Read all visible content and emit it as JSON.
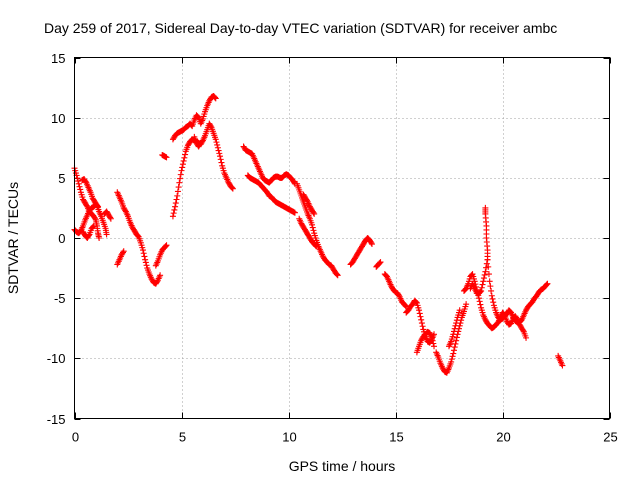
{
  "chart_data": {
    "type": "scatter",
    "title": "Day 259 of 2017, Sidereal Day-to-day VTEC variation (SDTVAR) for receiver ambc",
    "xlabel": "GPS time / hours",
    "ylabel": "SDTVAR / TECUs",
    "xlim": [
      0,
      25
    ],
    "ylim": [
      -15,
      15
    ],
    "xticks": [
      0,
      5,
      10,
      15,
      20,
      25
    ],
    "yticks": [
      -15,
      -10,
      -5,
      0,
      5,
      10,
      15
    ],
    "xtick_labels": [
      "0",
      "5",
      "10",
      "15",
      "20",
      "25"
    ],
    "ytick_labels": [
      "-15",
      "-10",
      "-5",
      "0",
      "5",
      "10",
      "15"
    ],
    "grid": true,
    "marker": "plus",
    "point_color": "#ff0000",
    "segments": [
      [
        [
          0.0,
          5.8
        ],
        [
          0.1,
          5.2
        ],
        [
          0.2,
          4.5
        ],
        [
          0.3,
          3.8
        ],
        [
          0.4,
          3.2
        ],
        [
          0.5,
          2.9
        ],
        [
          0.6,
          2.6
        ],
        [
          0.7,
          2.2
        ],
        [
          0.8,
          2.0
        ],
        [
          0.9,
          1.8
        ],
        [
          1.0,
          1.5
        ],
        [
          1.05,
          1.0
        ],
        [
          1.1,
          0.4
        ],
        [
          1.15,
          0.0
        ]
      ],
      [
        [
          0.0,
          0.7
        ],
        [
          0.1,
          0.5
        ],
        [
          0.2,
          0.4
        ],
        [
          0.3,
          0.6
        ],
        [
          0.4,
          1.0
        ],
        [
          0.5,
          1.5
        ],
        [
          0.6,
          1.9
        ],
        [
          0.7,
          2.3
        ],
        [
          0.8,
          2.5
        ],
        [
          0.9,
          2.6
        ],
        [
          1.0,
          2.8
        ],
        [
          1.1,
          2.6
        ]
      ],
      [
        [
          0.4,
          0.5
        ],
        [
          0.5,
          0.2
        ],
        [
          0.6,
          0.0
        ],
        [
          0.7,
          0.3
        ],
        [
          0.8,
          0.8
        ],
        [
          0.9,
          1.0
        ]
      ],
      [
        [
          0.35,
          4.8
        ],
        [
          0.45,
          4.9
        ],
        [
          0.55,
          4.6
        ],
        [
          0.65,
          4.2
        ],
        [
          0.75,
          3.8
        ],
        [
          0.85,
          3.3
        ],
        [
          0.95,
          3.0
        ],
        [
          1.05,
          2.7
        ],
        [
          1.15,
          2.2
        ],
        [
          1.25,
          1.8
        ],
        [
          1.35,
          1.3
        ],
        [
          1.45,
          0.8
        ],
        [
          1.5,
          0.3
        ]
      ],
      [
        [
          1.4,
          2.0
        ],
        [
          1.5,
          2.2
        ],
        [
          1.6,
          1.9
        ],
        [
          1.7,
          1.6
        ]
      ],
      [
        [
          2.0,
          3.8
        ],
        [
          2.1,
          3.4
        ],
        [
          2.2,
          3.0
        ],
        [
          2.3,
          2.5
        ],
        [
          2.4,
          2.2
        ],
        [
          2.5,
          1.8
        ],
        [
          2.6,
          1.3
        ],
        [
          2.7,
          0.9
        ],
        [
          2.8,
          0.6
        ],
        [
          2.9,
          0.3
        ],
        [
          3.0,
          0.1
        ],
        [
          3.1,
          -0.4
        ],
        [
          3.2,
          -1.0
        ],
        [
          3.3,
          -1.8
        ],
        [
          3.4,
          -2.5
        ],
        [
          3.5,
          -3.0
        ],
        [
          3.6,
          -3.4
        ],
        [
          3.7,
          -3.7
        ],
        [
          3.8,
          -3.8
        ],
        [
          3.9,
          -3.5
        ],
        [
          4.0,
          -3.1
        ]
      ],
      [
        [
          2.0,
          -2.2
        ],
        [
          2.1,
          -1.8
        ],
        [
          2.2,
          -1.4
        ],
        [
          2.3,
          -1.1
        ]
      ],
      [
        [
          3.8,
          -2.3
        ],
        [
          3.9,
          -1.9
        ],
        [
          4.0,
          -1.4
        ],
        [
          4.1,
          -1.0
        ],
        [
          4.2,
          -0.8
        ],
        [
          4.3,
          -0.6
        ]
      ],
      [
        [
          4.1,
          6.9
        ],
        [
          4.2,
          6.8
        ],
        [
          4.3,
          6.7
        ]
      ],
      [
        [
          4.6,
          1.8
        ],
        [
          4.7,
          2.6
        ],
        [
          4.8,
          3.5
        ],
        [
          4.9,
          4.6
        ],
        [
          5.0,
          5.6
        ],
        [
          5.1,
          6.4
        ],
        [
          5.2,
          7.2
        ],
        [
          5.3,
          7.7
        ],
        [
          5.4,
          8.0
        ],
        [
          5.5,
          8.2
        ],
        [
          5.6,
          8.1
        ],
        [
          5.7,
          8.0
        ],
        [
          5.8,
          7.9
        ],
        [
          5.9,
          7.8
        ],
        [
          6.0,
          8.1
        ],
        [
          6.1,
          8.5
        ],
        [
          6.2,
          9.0
        ],
        [
          6.3,
          9.5
        ],
        [
          6.4,
          9.2
        ],
        [
          6.5,
          8.7
        ],
        [
          6.6,
          8.2
        ],
        [
          6.7,
          7.5
        ],
        [
          6.8,
          6.8
        ],
        [
          6.9,
          6.0
        ],
        [
          7.0,
          5.4
        ],
        [
          7.1,
          5.0
        ],
        [
          7.2,
          4.6
        ],
        [
          7.3,
          4.3
        ],
        [
          7.4,
          4.1
        ]
      ],
      [
        [
          4.6,
          8.2
        ],
        [
          4.7,
          8.5
        ],
        [
          4.8,
          8.7
        ],
        [
          4.9,
          8.8
        ],
        [
          5.0,
          8.9
        ],
        [
          5.1,
          9.0
        ],
        [
          5.2,
          9.2
        ],
        [
          5.3,
          9.3
        ],
        [
          5.4,
          9.5
        ],
        [
          5.5,
          9.3
        ],
        [
          5.6,
          9.8
        ],
        [
          5.7,
          10.2
        ],
        [
          5.8,
          10.0
        ],
        [
          5.9,
          9.5
        ],
        [
          6.0,
          9.9
        ],
        [
          6.1,
          10.5
        ],
        [
          6.2,
          11.0
        ],
        [
          6.3,
          11.4
        ],
        [
          6.4,
          11.7
        ],
        [
          6.5,
          11.8
        ],
        [
          6.6,
          11.6
        ]
      ],
      [
        [
          5.6,
          8.4
        ],
        [
          5.7,
          7.9
        ],
        [
          5.8,
          7.6
        ],
        [
          5.9,
          7.9
        ]
      ],
      [
        [
          7.9,
          7.6
        ],
        [
          8.0,
          7.3
        ],
        [
          8.1,
          7.2
        ],
        [
          8.2,
          7.1
        ],
        [
          8.3,
          7.0
        ],
        [
          8.4,
          6.6
        ],
        [
          8.5,
          6.2
        ],
        [
          8.6,
          5.8
        ],
        [
          8.7,
          5.4
        ],
        [
          8.8,
          5.0
        ],
        [
          8.9,
          4.8
        ],
        [
          9.0,
          4.7
        ],
        [
          9.1,
          4.6
        ],
        [
          9.2,
          4.8
        ],
        [
          9.3,
          5.0
        ],
        [
          9.4,
          5.1
        ],
        [
          9.5,
          5.1
        ],
        [
          9.6,
          5.0
        ],
        [
          9.7,
          5.0
        ],
        [
          9.8,
          5.2
        ],
        [
          9.9,
          5.3
        ],
        [
          10.0,
          5.2
        ],
        [
          10.1,
          5.0
        ],
        [
          10.2,
          4.8
        ],
        [
          10.3,
          4.5
        ]
      ],
      [
        [
          8.1,
          5.2
        ],
        [
          8.2,
          5.0
        ],
        [
          8.3,
          4.9
        ],
        [
          8.4,
          4.8
        ],
        [
          8.5,
          4.7
        ],
        [
          8.6,
          4.6
        ],
        [
          8.7,
          4.4
        ],
        [
          8.8,
          4.2
        ],
        [
          8.9,
          4.0
        ],
        [
          9.0,
          3.8
        ],
        [
          9.1,
          3.5
        ],
        [
          9.2,
          3.4
        ],
        [
          9.3,
          3.2
        ],
        [
          9.4,
          3.0
        ],
        [
          9.5,
          2.9
        ],
        [
          9.6,
          2.8
        ],
        [
          9.7,
          2.7
        ],
        [
          9.8,
          2.6
        ],
        [
          9.9,
          2.5
        ],
        [
          10.0,
          2.4
        ],
        [
          10.1,
          2.3
        ],
        [
          10.2,
          2.2
        ],
        [
          10.3,
          2.1
        ]
      ],
      [
        [
          10.4,
          4.5
        ],
        [
          10.5,
          4.0
        ],
        [
          10.6,
          3.5
        ],
        [
          10.7,
          3.0
        ],
        [
          10.8,
          2.5
        ],
        [
          10.9,
          2.0
        ],
        [
          11.0,
          1.6
        ],
        [
          11.1,
          1.1
        ],
        [
          11.2,
          0.4
        ],
        [
          11.3,
          -0.2
        ],
        [
          11.4,
          -0.7
        ],
        [
          11.5,
          -1.1
        ],
        [
          11.6,
          -1.5
        ],
        [
          11.7,
          -1.8
        ],
        [
          11.8,
          -2.0
        ],
        [
          11.9,
          -2.2
        ],
        [
          12.0,
          -2.3
        ],
        [
          12.1,
          -2.6
        ],
        [
          12.2,
          -2.9
        ],
        [
          12.3,
          -3.1
        ]
      ],
      [
        [
          10.5,
          1.6
        ],
        [
          10.6,
          1.2
        ],
        [
          10.7,
          0.9
        ],
        [
          10.8,
          0.6
        ],
        [
          10.9,
          0.3
        ],
        [
          11.0,
          0.0
        ],
        [
          11.1,
          -0.3
        ],
        [
          11.2,
          -0.5
        ],
        [
          11.3,
          -0.7
        ]
      ],
      [
        [
          10.7,
          3.6
        ],
        [
          10.8,
          3.3
        ],
        [
          10.9,
          3.0
        ],
        [
          11.0,
          2.6
        ],
        [
          11.1,
          2.3
        ],
        [
          11.2,
          2.0
        ]
      ],
      [
        [
          12.9,
          -2.2
        ],
        [
          13.0,
          -2.0
        ],
        [
          13.1,
          -1.7
        ],
        [
          13.2,
          -1.4
        ],
        [
          13.3,
          -1.1
        ],
        [
          13.4,
          -0.8
        ],
        [
          13.5,
          -0.5
        ],
        [
          13.6,
          -0.2
        ],
        [
          13.7,
          0.0
        ],
        [
          13.8,
          -0.2
        ],
        [
          13.9,
          -0.5
        ]
      ],
      [
        [
          14.1,
          -2.4
        ],
        [
          14.2,
          -2.2
        ],
        [
          14.3,
          -2.0
        ]
      ],
      [
        [
          14.5,
          -3.0
        ],
        [
          14.6,
          -3.2
        ],
        [
          14.7,
          -3.6
        ],
        [
          14.8,
          -4.0
        ],
        [
          14.9,
          -4.3
        ],
        [
          15.0,
          -4.5
        ],
        [
          15.1,
          -4.6
        ],
        [
          15.2,
          -4.9
        ],
        [
          15.3,
          -5.3
        ],
        [
          15.4,
          -5.5
        ],
        [
          15.5,
          -5.7
        ]
      ],
      [
        [
          15.5,
          -6.2
        ],
        [
          15.6,
          -6.0
        ],
        [
          15.7,
          -5.7
        ],
        [
          15.8,
          -5.5
        ],
        [
          15.9,
          -5.2
        ],
        [
          16.0,
          -5.4
        ],
        [
          16.1,
          -6.0
        ],
        [
          16.2,
          -6.8
        ],
        [
          16.3,
          -7.6
        ],
        [
          16.4,
          -8.2
        ],
        [
          16.5,
          -8.6
        ],
        [
          16.6,
          -8.7
        ],
        [
          16.7,
          -8.4
        ],
        [
          16.8,
          -8.0
        ]
      ],
      [
        [
          16.0,
          -9.5
        ],
        [
          16.1,
          -9.0
        ],
        [
          16.2,
          -8.5
        ],
        [
          16.3,
          -8.2
        ],
        [
          16.4,
          -8.0
        ],
        [
          16.5,
          -7.8
        ],
        [
          16.6,
          -7.9
        ],
        [
          16.7,
          -8.3
        ],
        [
          16.8,
          -9.0
        ]
      ],
      [
        [
          16.9,
          -9.5
        ],
        [
          17.0,
          -9.9
        ],
        [
          17.1,
          -10.4
        ],
        [
          17.2,
          -10.8
        ],
        [
          17.3,
          -11.1
        ],
        [
          17.4,
          -11.2
        ],
        [
          17.5,
          -10.8
        ],
        [
          17.6,
          -10.3
        ],
        [
          17.7,
          -9.6
        ],
        [
          17.8,
          -8.8
        ],
        [
          17.9,
          -8.0
        ],
        [
          18.0,
          -7.3
        ],
        [
          18.1,
          -6.6
        ],
        [
          18.2,
          -6.1
        ],
        [
          18.3,
          -5.5
        ]
      ],
      [
        [
          17.5,
          -9.0
        ],
        [
          17.6,
          -8.6
        ],
        [
          17.7,
          -8.0
        ],
        [
          17.8,
          -7.3
        ],
        [
          17.9,
          -6.6
        ],
        [
          18.0,
          -6.0
        ]
      ],
      [
        [
          18.2,
          -4.4
        ],
        [
          18.3,
          -4.2
        ],
        [
          18.4,
          -3.8
        ],
        [
          18.5,
          -3.2
        ],
        [
          18.6,
          -3.0
        ],
        [
          18.7,
          -3.6
        ],
        [
          18.8,
          -4.3
        ],
        [
          18.9,
          -5.0
        ],
        [
          19.0,
          -5.8
        ],
        [
          19.1,
          -6.4
        ],
        [
          19.2,
          -6.8
        ],
        [
          19.3,
          -7.1
        ],
        [
          19.4,
          -7.3
        ],
        [
          19.5,
          -7.5
        ],
        [
          19.6,
          -7.4
        ],
        [
          19.7,
          -7.2
        ],
        [
          19.8,
          -7.0
        ],
        [
          19.9,
          -6.6
        ],
        [
          20.0,
          -6.2
        ],
        [
          20.1,
          -6.4
        ],
        [
          20.2,
          -6.9
        ],
        [
          20.3,
          -7.2
        ],
        [
          20.4,
          -7.1
        ],
        [
          20.5,
          -6.7
        ],
        [
          20.6,
          -6.5
        ],
        [
          20.7,
          -6.8
        ],
        [
          20.8,
          -7.2
        ],
        [
          20.9,
          -7.5
        ],
        [
          21.0,
          -7.8
        ],
        [
          21.1,
          -8.3
        ]
      ],
      [
        [
          18.5,
          -4.2
        ],
        [
          18.6,
          -3.8
        ],
        [
          18.7,
          -4.2
        ],
        [
          18.8,
          -4.6
        ],
        [
          18.9,
          -4.6
        ],
        [
          19.0,
          -4.4
        ],
        [
          19.1,
          -3.6
        ],
        [
          19.2,
          -2.8
        ],
        [
          19.3,
          -1.8
        ],
        [
          19.4,
          -3.6
        ],
        [
          19.5,
          -4.8
        ],
        [
          19.6,
          -5.6
        ],
        [
          19.7,
          -6.2
        ],
        [
          19.8,
          -6.6
        ],
        [
          19.9,
          -6.8
        ],
        [
          20.0,
          -6.7
        ],
        [
          20.1,
          -6.5
        ],
        [
          20.2,
          -6.3
        ],
        [
          20.3,
          -6.0
        ],
        [
          20.4,
          -6.2
        ],
        [
          20.5,
          -6.6
        ],
        [
          20.6,
          -6.9
        ],
        [
          20.7,
          -7.0
        ],
        [
          20.8,
          -7.0
        ],
        [
          20.9,
          -6.8
        ],
        [
          21.0,
          -6.4
        ],
        [
          21.1,
          -6.0
        ],
        [
          21.2,
          -5.7
        ],
        [
          21.3,
          -5.5
        ],
        [
          21.4,
          -5.3
        ],
        [
          21.5,
          -5.0
        ],
        [
          21.6,
          -4.8
        ],
        [
          21.7,
          -4.5
        ],
        [
          21.8,
          -4.3
        ],
        [
          21.9,
          -4.2
        ],
        [
          22.0,
          -4.0
        ],
        [
          22.1,
          -3.8
        ]
      ],
      [
        [
          19.2,
          2.5
        ],
        [
          19.2,
          2.0
        ],
        [
          19.25,
          1.0
        ],
        [
          19.25,
          0.0
        ],
        [
          19.3,
          -1.0
        ],
        [
          19.3,
          -1.8
        ]
      ],
      [
        [
          22.6,
          -9.8
        ],
        [
          22.7,
          -10.2
        ],
        [
          22.8,
          -10.6
        ]
      ]
    ]
  }
}
